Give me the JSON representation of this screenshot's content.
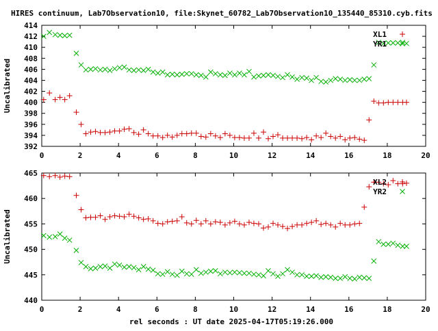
{
  "title": "HIRES continuum, Lab7Observation10, file:Skynet_60782_Lab7Observation10_135440_85310.cyb.fits",
  "xlabel": "rel seconds : UT date 2025-04-17T05:19:26.000",
  "colors": {
    "red": "#cc0000",
    "green": "#00b000"
  },
  "chart_data": [
    {
      "type": "scatter",
      "ylabel": "Uncalibrated",
      "xlim": [
        0,
        20
      ],
      "ylim": [
        392,
        414
      ],
      "xticks": [
        0,
        2,
        4,
        6,
        8,
        10,
        12,
        14,
        16,
        18,
        20
      ],
      "yticks": [
        392,
        394,
        396,
        398,
        400,
        402,
        404,
        406,
        408,
        410,
        412,
        414
      ],
      "legend_position": "top-right",
      "series": [
        {
          "name": "XL1",
          "marker": "plus",
          "color": "#cc0000",
          "x": [
            0.1,
            0.4,
            0.7,
            0.95,
            1.2,
            1.45,
            1.8,
            2.05,
            2.3,
            2.55,
            2.8,
            3.05,
            3.3,
            3.55,
            3.8,
            4.05,
            4.3,
            4.55,
            4.8,
            5.05,
            5.3,
            5.55,
            5.8,
            6.05,
            6.3,
            6.55,
            6.8,
            7.05,
            7.3,
            7.55,
            7.8,
            8.05,
            8.3,
            8.55,
            8.8,
            9.05,
            9.3,
            9.55,
            9.8,
            10.05,
            10.3,
            10.55,
            10.8,
            11.05,
            11.3,
            11.55,
            11.8,
            12.05,
            12.3,
            12.55,
            12.8,
            13.05,
            13.3,
            13.55,
            13.8,
            14.05,
            14.3,
            14.55,
            14.8,
            15.05,
            15.3,
            15.55,
            15.8,
            16.05,
            16.3,
            16.55,
            16.8,
            17.05,
            17.3,
            17.55,
            17.8,
            18.05,
            18.3,
            18.55,
            18.8,
            19.0
          ],
          "y": [
            400.5,
            401.7,
            400.5,
            400.9,
            400.5,
            401.2,
            398.2,
            396.0,
            394.3,
            394.6,
            394.7,
            394.5,
            394.5,
            394.6,
            394.8,
            394.8,
            395.1,
            395.2,
            394.5,
            394.2,
            395.0,
            394.3,
            393.9,
            393.9,
            393.6,
            394.0,
            393.7,
            394.0,
            394.3,
            394.3,
            394.4,
            394.4,
            393.8,
            393.7,
            394.3,
            393.9,
            393.6,
            394.3,
            394.0,
            393.6,
            393.6,
            393.5,
            393.5,
            394.4,
            393.5,
            394.6,
            393.4,
            393.8,
            394.1,
            393.5,
            393.5,
            393.5,
            393.5,
            393.4,
            393.6,
            393.2,
            393.9,
            393.6,
            394.4,
            393.8,
            393.5,
            393.8,
            393.2,
            393.5,
            393.6,
            393.3,
            393.1,
            396.8,
            400.2,
            399.9,
            399.9,
            400.0,
            400.0,
            400.0,
            400.0,
            400.0
          ]
        },
        {
          "name": "YR1",
          "marker": "cross",
          "color": "#00b000",
          "x": [
            0.1,
            0.4,
            0.7,
            0.95,
            1.2,
            1.45,
            1.8,
            2.05,
            2.3,
            2.55,
            2.8,
            3.05,
            3.3,
            3.55,
            3.8,
            4.05,
            4.3,
            4.55,
            4.8,
            5.05,
            5.3,
            5.55,
            5.8,
            6.05,
            6.3,
            6.55,
            6.8,
            7.05,
            7.3,
            7.55,
            7.8,
            8.05,
            8.3,
            8.55,
            8.8,
            9.05,
            9.3,
            9.55,
            9.8,
            10.05,
            10.3,
            10.55,
            10.8,
            11.05,
            11.3,
            11.55,
            11.8,
            12.05,
            12.3,
            12.55,
            12.8,
            13.05,
            13.3,
            13.55,
            13.8,
            14.05,
            14.3,
            14.55,
            14.8,
            15.05,
            15.3,
            15.55,
            15.8,
            16.05,
            16.3,
            16.55,
            16.8,
            17.05,
            17.3,
            17.55,
            17.8,
            18.05,
            18.3,
            18.55,
            18.8,
            19.0
          ],
          "y": [
            412.0,
            412.7,
            412.3,
            412.2,
            412.1,
            412.2,
            408.9,
            406.8,
            405.9,
            406.0,
            406.1,
            405.9,
            406.0,
            405.8,
            406.1,
            406.3,
            406.4,
            405.9,
            405.8,
            405.9,
            405.8,
            406.0,
            405.5,
            405.3,
            405.5,
            405.0,
            405.1,
            405.0,
            405.1,
            405.2,
            405.2,
            405.0,
            404.9,
            404.6,
            405.5,
            405.2,
            405.0,
            404.9,
            405.3,
            405.0,
            405.3,
            405.0,
            405.6,
            404.6,
            404.8,
            404.9,
            405.0,
            404.9,
            404.7,
            404.5,
            405.0,
            404.6,
            404.2,
            404.5,
            404.4,
            404.0,
            404.5,
            403.8,
            403.7,
            404.0,
            404.3,
            404.2,
            404.0,
            404.1,
            404.0,
            404.0,
            404.2,
            404.3,
            406.8,
            410.9,
            410.7,
            410.8,
            410.8,
            410.8,
            410.9,
            410.7
          ]
        }
      ]
    },
    {
      "type": "scatter",
      "ylabel": "Uncalibrated",
      "xlim": [
        0,
        20
      ],
      "ylim": [
        440,
        465
      ],
      "xticks": [
        0,
        2,
        4,
        6,
        8,
        10,
        12,
        14,
        16,
        18,
        20
      ],
      "yticks": [
        440,
        445,
        450,
        455,
        460,
        465
      ],
      "legend_position": "top-right",
      "series": [
        {
          "name": "XL2",
          "marker": "plus",
          "color": "#cc0000",
          "x": [
            0.1,
            0.4,
            0.7,
            0.95,
            1.2,
            1.45,
            1.8,
            2.05,
            2.3,
            2.55,
            2.8,
            3.05,
            3.3,
            3.55,
            3.8,
            4.05,
            4.3,
            4.55,
            4.8,
            5.05,
            5.3,
            5.55,
            5.8,
            6.05,
            6.3,
            6.55,
            6.8,
            7.05,
            7.3,
            7.55,
            7.8,
            8.05,
            8.3,
            8.55,
            8.8,
            9.05,
            9.3,
            9.55,
            9.8,
            10.05,
            10.3,
            10.55,
            10.8,
            11.05,
            11.3,
            11.55,
            11.8,
            12.05,
            12.3,
            12.55,
            12.8,
            13.05,
            13.3,
            13.55,
            13.8,
            14.05,
            14.3,
            14.55,
            14.8,
            15.05,
            15.3,
            15.55,
            15.8,
            16.05,
            16.3,
            16.55,
            16.8,
            17.05,
            17.3,
            17.55,
            17.8,
            18.05,
            18.3,
            18.55,
            18.8,
            19.0
          ],
          "y": [
            464.5,
            464.3,
            464.5,
            464.2,
            464.4,
            464.3,
            460.6,
            457.8,
            456.2,
            456.3,
            456.3,
            456.6,
            455.9,
            456.4,
            456.6,
            456.5,
            456.4,
            456.9,
            456.5,
            456.2,
            455.9,
            456.0,
            455.6,
            455.1,
            455.0,
            455.4,
            455.5,
            455.6,
            456.4,
            455.2,
            455.0,
            455.7,
            455.0,
            455.6,
            455.0,
            455.4,
            455.3,
            454.8,
            455.2,
            455.5,
            455.0,
            454.8,
            455.3,
            455.1,
            455.0,
            454.2,
            454.4,
            455.1,
            454.8,
            454.5,
            454.1,
            454.5,
            454.8,
            454.8,
            455.1,
            455.3,
            455.6,
            454.9,
            455.1,
            454.8,
            454.4,
            455.1,
            454.8,
            454.8,
            455.0,
            455.1,
            458.3,
            462.3,
            463.2,
            463.2,
            462.9,
            462.7,
            463.5,
            462.9,
            462.9,
            463.0
          ]
        },
        {
          "name": "YR2",
          "marker": "cross",
          "color": "#00b000",
          "x": [
            0.1,
            0.4,
            0.7,
            0.95,
            1.2,
            1.45,
            1.8,
            2.05,
            2.3,
            2.55,
            2.8,
            3.05,
            3.3,
            3.55,
            3.8,
            4.05,
            4.3,
            4.55,
            4.8,
            5.05,
            5.3,
            5.55,
            5.8,
            6.05,
            6.3,
            6.55,
            6.8,
            7.05,
            7.3,
            7.55,
            7.8,
            8.05,
            8.3,
            8.55,
            8.8,
            9.05,
            9.3,
            9.55,
            9.8,
            10.05,
            10.3,
            10.55,
            10.8,
            11.05,
            11.3,
            11.55,
            11.8,
            12.05,
            12.3,
            12.55,
            12.8,
            13.05,
            13.3,
            13.55,
            13.8,
            14.05,
            14.3,
            14.55,
            14.8,
            15.05,
            15.3,
            15.55,
            15.8,
            16.05,
            16.3,
            16.55,
            16.8,
            17.05,
            17.3,
            17.55,
            17.8,
            18.05,
            18.3,
            18.55,
            18.8,
            19.0
          ],
          "y": [
            452.7,
            452.4,
            452.5,
            453.0,
            452.2,
            451.8,
            449.8,
            447.4,
            446.6,
            446.2,
            446.3,
            446.6,
            446.7,
            446.3,
            447.1,
            446.9,
            446.5,
            446.6,
            446.4,
            446.0,
            446.6,
            446.1,
            445.9,
            445.2,
            445.1,
            445.6,
            445.1,
            444.9,
            445.7,
            445.2,
            445.1,
            446.0,
            445.3,
            445.5,
            445.7,
            445.8,
            445.2,
            445.5,
            445.4,
            445.5,
            445.4,
            445.3,
            445.3,
            445.1,
            445.0,
            444.8,
            445.8,
            445.2,
            444.7,
            445.2,
            446.0,
            445.5,
            445.0,
            445.0,
            444.7,
            444.7,
            444.8,
            444.5,
            444.6,
            444.5,
            444.3,
            444.3,
            444.6,
            444.3,
            444.2,
            444.5,
            444.4,
            444.3,
            447.7,
            451.5,
            451.0,
            451.0,
            451.2,
            450.8,
            450.6,
            450.6
          ]
        }
      ]
    }
  ]
}
